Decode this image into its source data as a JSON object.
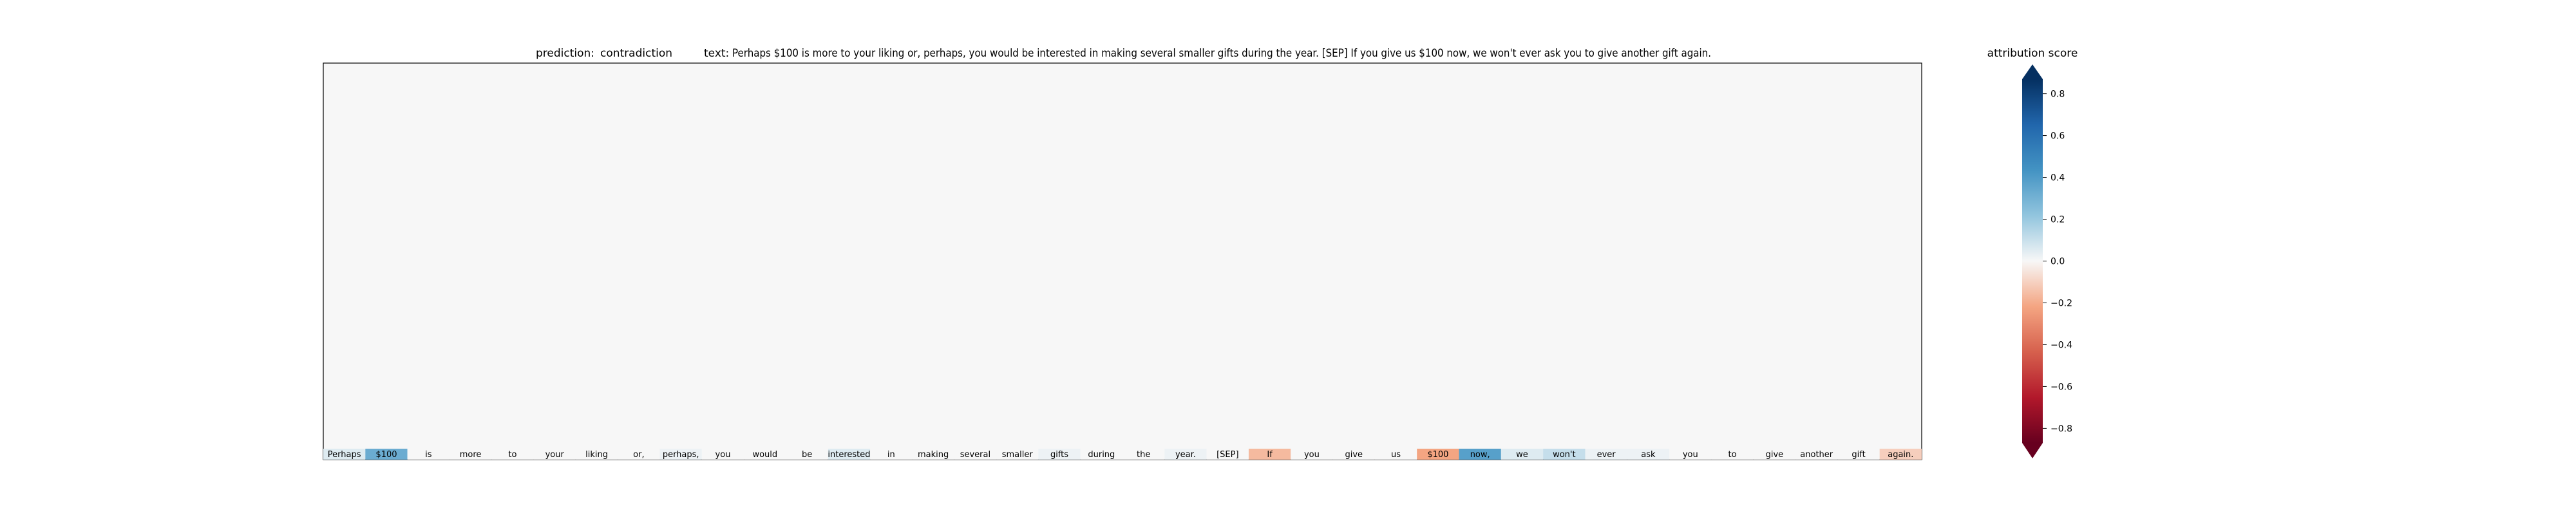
{
  "chart_data": {
    "type": "heatmap",
    "title_prediction_prefix": "prediction:",
    "title_prediction_value": "contradiction",
    "title_text_prefix": "text:",
    "title_text_value": "Perhaps $100 is more to your liking or, perhaps, you would be interested in making several smaller gifts during the year. [SEP] If you give us $100 now, we won't ever ask you to give another gift again.",
    "tokens": [
      "Perhaps",
      "$100",
      "is",
      "more",
      "to",
      "your",
      "liking",
      "or,",
      "perhaps,",
      "you",
      "would",
      "be",
      "interested",
      "in",
      "making",
      "several",
      "smaller",
      "gifts",
      "during",
      "the",
      "year.",
      "[SEP]",
      "If",
      "you",
      "give",
      "us",
      "$100",
      "now,",
      "we",
      "won't",
      "ever",
      "ask",
      "you",
      "to",
      "give",
      "another",
      "gift",
      "again."
    ],
    "bottom_row_values": [
      0.05,
      0.3,
      0.0,
      0.0,
      0.0,
      0.0,
      0.0,
      0.0,
      0.02,
      0.0,
      0.0,
      0.0,
      0.05,
      0.0,
      0.0,
      0.0,
      0.0,
      0.02,
      0.0,
      0.0,
      0.02,
      0.0,
      -0.15,
      0.0,
      0.0,
      0.0,
      -0.2,
      0.35,
      0.05,
      0.1,
      0.02,
      0.02,
      0.0,
      0.0,
      0.0,
      0.0,
      0.0,
      -0.1
    ],
    "colorbar": {
      "label": "attribution score",
      "range": [
        -0.8,
        0.8
      ],
      "ticks": [
        "0.8",
        "0.6",
        "0.4",
        "0.2",
        "0.0",
        "−0.2",
        "−0.4",
        "−0.6",
        "−0.8"
      ]
    }
  }
}
